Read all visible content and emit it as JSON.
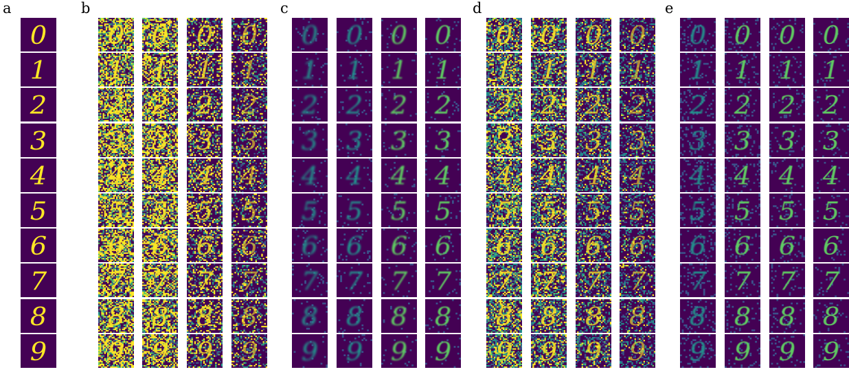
{
  "panels": [
    {
      "label": "a",
      "title": "",
      "columns": 1,
      "style": "clean"
    },
    {
      "label": "b",
      "title": "",
      "columns": 4,
      "style": "noisy-heavy"
    },
    {
      "label": "c",
      "title": "",
      "columns": 4,
      "style": "blurred"
    },
    {
      "label": "d",
      "title": "",
      "columns": 4,
      "style": "noisy-mixed"
    },
    {
      "label": "e",
      "title": "",
      "columns": 4,
      "style": "clean-soft"
    }
  ],
  "digits": [
    "0",
    "1",
    "2",
    "3",
    "4",
    "5",
    "6",
    "7",
    "8",
    "9"
  ],
  "colors": {
    "background": "#440154",
    "dark": "#3b528b",
    "mid": "#21918c",
    "bright": "#5ec962",
    "peak": "#fde725"
  }
}
